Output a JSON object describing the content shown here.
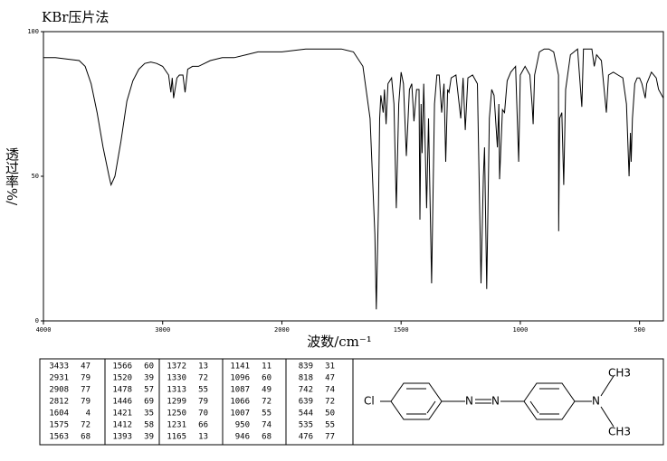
{
  "chart_data": {
    "type": "line",
    "title": "KBr压片法",
    "xlabel": "波数/cm⁻¹",
    "ylabel": "透过率%/",
    "xlim": [
      4000,
      400
    ],
    "xbreak": 2000,
    "xticks": [
      4000,
      3000,
      2000,
      1500,
      1000,
      500
    ],
    "ylim": [
      0,
      100
    ],
    "yticks": [
      0,
      50,
      100
    ],
    "x": [
      4000,
      3900,
      3800,
      3700,
      3650,
      3600,
      3550,
      3500,
      3450,
      3433,
      3400,
      3350,
      3300,
      3250,
      3200,
      3150,
      3100,
      3050,
      3000,
      2950,
      2931,
      2920,
      2908,
      2880,
      2860,
      2830,
      2812,
      2790,
      2750,
      2700,
      2600,
      2500,
      2400,
      2300,
      2200,
      2100,
      2000,
      1900,
      1800,
      1750,
      1700,
      1660,
      1630,
      1610,
      1604,
      1595,
      1590,
      1585,
      1575,
      1570,
      1563,
      1555,
      1540,
      1530,
      1520,
      1510,
      1500,
      1490,
      1478,
      1465,
      1455,
      1446,
      1435,
      1425,
      1421,
      1416,
      1412,
      1405,
      1393,
      1385,
      1372,
      1360,
      1350,
      1340,
      1330,
      1320,
      1313,
      1305,
      1299,
      1290,
      1270,
      1250,
      1240,
      1231,
      1220,
      1200,
      1180,
      1165,
      1155,
      1150,
      1141,
      1130,
      1120,
      1110,
      1096,
      1090,
      1087,
      1075,
      1066,
      1055,
      1040,
      1020,
      1007,
      1000,
      980,
      960,
      950,
      946,
      940,
      920,
      900,
      880,
      860,
      840,
      839,
      835,
      826,
      818,
      810,
      790,
      760,
      742,
      735,
      700,
      690,
      680,
      660,
      639,
      630,
      610,
      590,
      570,
      555,
      544,
      538,
      535,
      530,
      520,
      510,
      500,
      490,
      476,
      470,
      450,
      430,
      420,
      400
    ],
    "series": [
      {
        "color": "#000000",
        "values": [
          91,
          91,
          90.5,
          90,
          88,
          82,
          72,
          60,
          50,
          47,
          50,
          62,
          76,
          83,
          87,
          89,
          89.5,
          89,
          88,
          85,
          79,
          84,
          77,
          84,
          85,
          85,
          79,
          87,
          88,
          88,
          90,
          91,
          91,
          92,
          93,
          93,
          93,
          94,
          94,
          94,
          93,
          88,
          70,
          30,
          4,
          40,
          70,
          78,
          72,
          80,
          68,
          82,
          84,
          75,
          39,
          75,
          86,
          82,
          57,
          80,
          82,
          69,
          80,
          80,
          35,
          75,
          58,
          82,
          39,
          70,
          13,
          75,
          85,
          85,
          72,
          82,
          55,
          80,
          79,
          84,
          85,
          70,
          84,
          66,
          84,
          85,
          82,
          13,
          50,
          60,
          11,
          70,
          80,
          78,
          60,
          75,
          49,
          73,
          72,
          83,
          86,
          88,
          55,
          85,
          88,
          85,
          74,
          68,
          85,
          93,
          94,
          94,
          93,
          85,
          31,
          70,
          72,
          47,
          80,
          92,
          94,
          74,
          94,
          94,
          88,
          92,
          90,
          72,
          85,
          86,
          85,
          84,
          75,
          50,
          65,
          55,
          70,
          82,
          84,
          84,
          82,
          77,
          82,
          86,
          84,
          80,
          77
        ]
      }
    ]
  },
  "peak_table": {
    "rows": [
      [
        [
          3433,
          47
        ],
        [
          1566,
          60
        ],
        [
          1372,
          13
        ],
        [
          1141,
          11
        ],
        [
          839,
          31
        ]
      ],
      [
        [
          2931,
          79
        ],
        [
          1520,
          39
        ],
        [
          1330,
          72
        ],
        [
          1096,
          60
        ],
        [
          818,
          47
        ]
      ],
      [
        [
          2908,
          77
        ],
        [
          1478,
          57
        ],
        [
          1313,
          55
        ],
        [
          1087,
          49
        ],
        [
          742,
          74
        ]
      ],
      [
        [
          2812,
          79
        ],
        [
          1446,
          69
        ],
        [
          1299,
          79
        ],
        [
          1066,
          72
        ],
        [
          639,
          72
        ]
      ],
      [
        [
          1604,
          4
        ],
        [
          1421,
          35
        ],
        [
          1250,
          70
        ],
        [
          1007,
          55
        ],
        [
          544,
          50
        ]
      ],
      [
        [
          1575,
          72
        ],
        [
          1412,
          58
        ],
        [
          1231,
          66
        ],
        [
          950,
          74
        ],
        [
          535,
          55
        ]
      ],
      [
        [
          1563,
          68
        ],
        [
          1393,
          39
        ],
        [
          1165,
          13
        ],
        [
          946,
          68
        ],
        [
          476,
          77
        ]
      ]
    ]
  },
  "structure": {
    "atoms": [
      "Cl",
      "N",
      "N",
      "N",
      "CH3",
      "CH3"
    ]
  }
}
